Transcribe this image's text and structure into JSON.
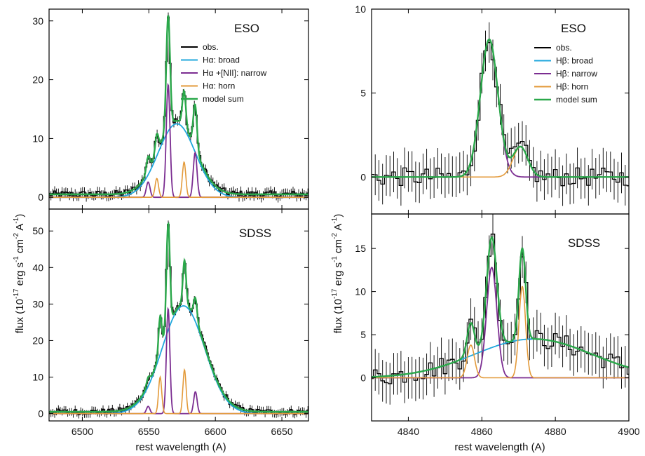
{
  "figure": {
    "left_xlabel": "rest wavelength  (A)",
    "right_xlabel": "rest wavelength  (A)",
    "left_ylabel_main": "flux  (10",
    "left_ylabel_exp": "-17",
    "left_ylabel_rest": " erg s",
    "left_ylabel_exp2": "-1",
    "left_ylabel_rest2": " cm",
    "left_ylabel_exp3": "-2",
    "left_ylabel_rest3": " A",
    "left_ylabel_exp4": "-1",
    "left_ylabel_close": ")",
    "right_ylabel_main": "flux  (10",
    "right_ylabel_exp": "-17",
    "right_ylabel_rest": " erg s",
    "right_ylabel_exp2": "-1",
    "right_ylabel_rest2": " cm",
    "right_ylabel_exp3": "-2",
    "right_ylabel_rest3": " A",
    "right_ylabel_exp4": "-1",
    "right_ylabel_close": ")"
  },
  "colors": {
    "obs": "#000000",
    "broad": "#1fa7dc",
    "narrow": "#7b2d91",
    "horn": "#e39a3a",
    "model": "#2aa84a"
  },
  "chart_data": [
    {
      "id": "ha-eso",
      "type": "line",
      "label": "ESO",
      "xlim": [
        6475,
        6670
      ],
      "ylim": [
        -2,
        32
      ],
      "xticks": [
        6500,
        6550,
        6600,
        6650
      ],
      "yticks": [
        0,
        10,
        20,
        30
      ],
      "show_xticklabels": false,
      "legend": [
        "obs.",
        "Hα: broad",
        "Hα +[NII]: narrow",
        "Hα: horn",
        "model sum"
      ],
      "baseline": 0.5,
      "broad": [
        {
          "c": 6571,
          "a": 12.5,
          "s": 14
        }
      ],
      "narrow": [
        {
          "c": 6549.5,
          "a": 2.6,
          "s": 1.4
        },
        {
          "c": 6564.5,
          "a": 19.2,
          "s": 1.4
        },
        {
          "c": 6584.8,
          "a": 7.6,
          "s": 1.4
        }
      ],
      "horn": [
        {
          "c": 6556,
          "a": 3.2,
          "s": 1.3
        },
        {
          "c": 6576.5,
          "a": 6.0,
          "s": 1.3
        }
      ]
    },
    {
      "id": "ha-sdss",
      "type": "line",
      "label": "SDSS",
      "xlim": [
        6475,
        6670
      ],
      "ylim": [
        -2,
        56
      ],
      "xticks": [
        6500,
        6550,
        6600,
        6650
      ],
      "yticks": [
        0,
        10,
        20,
        30,
        40,
        50
      ],
      "show_xticklabels": true,
      "legend": [],
      "baseline": 0.5,
      "broad": [
        {
          "c": 6576,
          "a": 29.5,
          "s": 16
        }
      ],
      "narrow": [
        {
          "c": 6549.5,
          "a": 2.0,
          "s": 1.3
        },
        {
          "c": 6564.5,
          "a": 28.8,
          "s": 1.3
        },
        {
          "c": 6585,
          "a": 6.0,
          "s": 1.3
        }
      ],
      "horn": [
        {
          "c": 6558.5,
          "a": 10.0,
          "s": 1.2
        },
        {
          "c": 6576.8,
          "a": 12.0,
          "s": 1.2
        }
      ]
    },
    {
      "id": "hb-eso",
      "type": "line",
      "label": "ESO",
      "xlim": [
        4830,
        4900
      ],
      "ylim": [
        -2.2,
        10
      ],
      "xticks": [
        4840,
        4860,
        4880,
        4900
      ],
      "yticks": [
        0,
        5,
        10
      ],
      "show_xticklabels": false,
      "legend": [
        "obs.",
        "Hβ: broad",
        "Hβ: narrow",
        "Hβ: horn",
        "model sum"
      ],
      "baseline": 0,
      "broad": [],
      "narrow": [
        {
          "c": 4862,
          "a": 8.2,
          "s": 2.4
        }
      ],
      "horn": [
        {
          "c": 4870.5,
          "a": 1.8,
          "s": 2.0
        }
      ]
    },
    {
      "id": "hb-sdss",
      "type": "line",
      "label": "SDSS",
      "xlim": [
        4830,
        4900
      ],
      "ylim": [
        -5,
        19
      ],
      "xticks": [
        4840,
        4860,
        4880,
        4900
      ],
      "yticks": [
        0,
        5,
        10,
        15
      ],
      "show_xticklabels": true,
      "legend": [],
      "baseline": 0,
      "broad": [
        {
          "c": 4874,
          "a": 4.5,
          "s": 16
        }
      ],
      "narrow": [
        {
          "c": 4862.7,
          "a": 12.8,
          "s": 1.4
        }
      ],
      "horn": [
        {
          "c": 4857,
          "a": 3.8,
          "s": 1.0
        },
        {
          "c": 4871,
          "a": 10.6,
          "s": 0.9
        }
      ]
    }
  ]
}
